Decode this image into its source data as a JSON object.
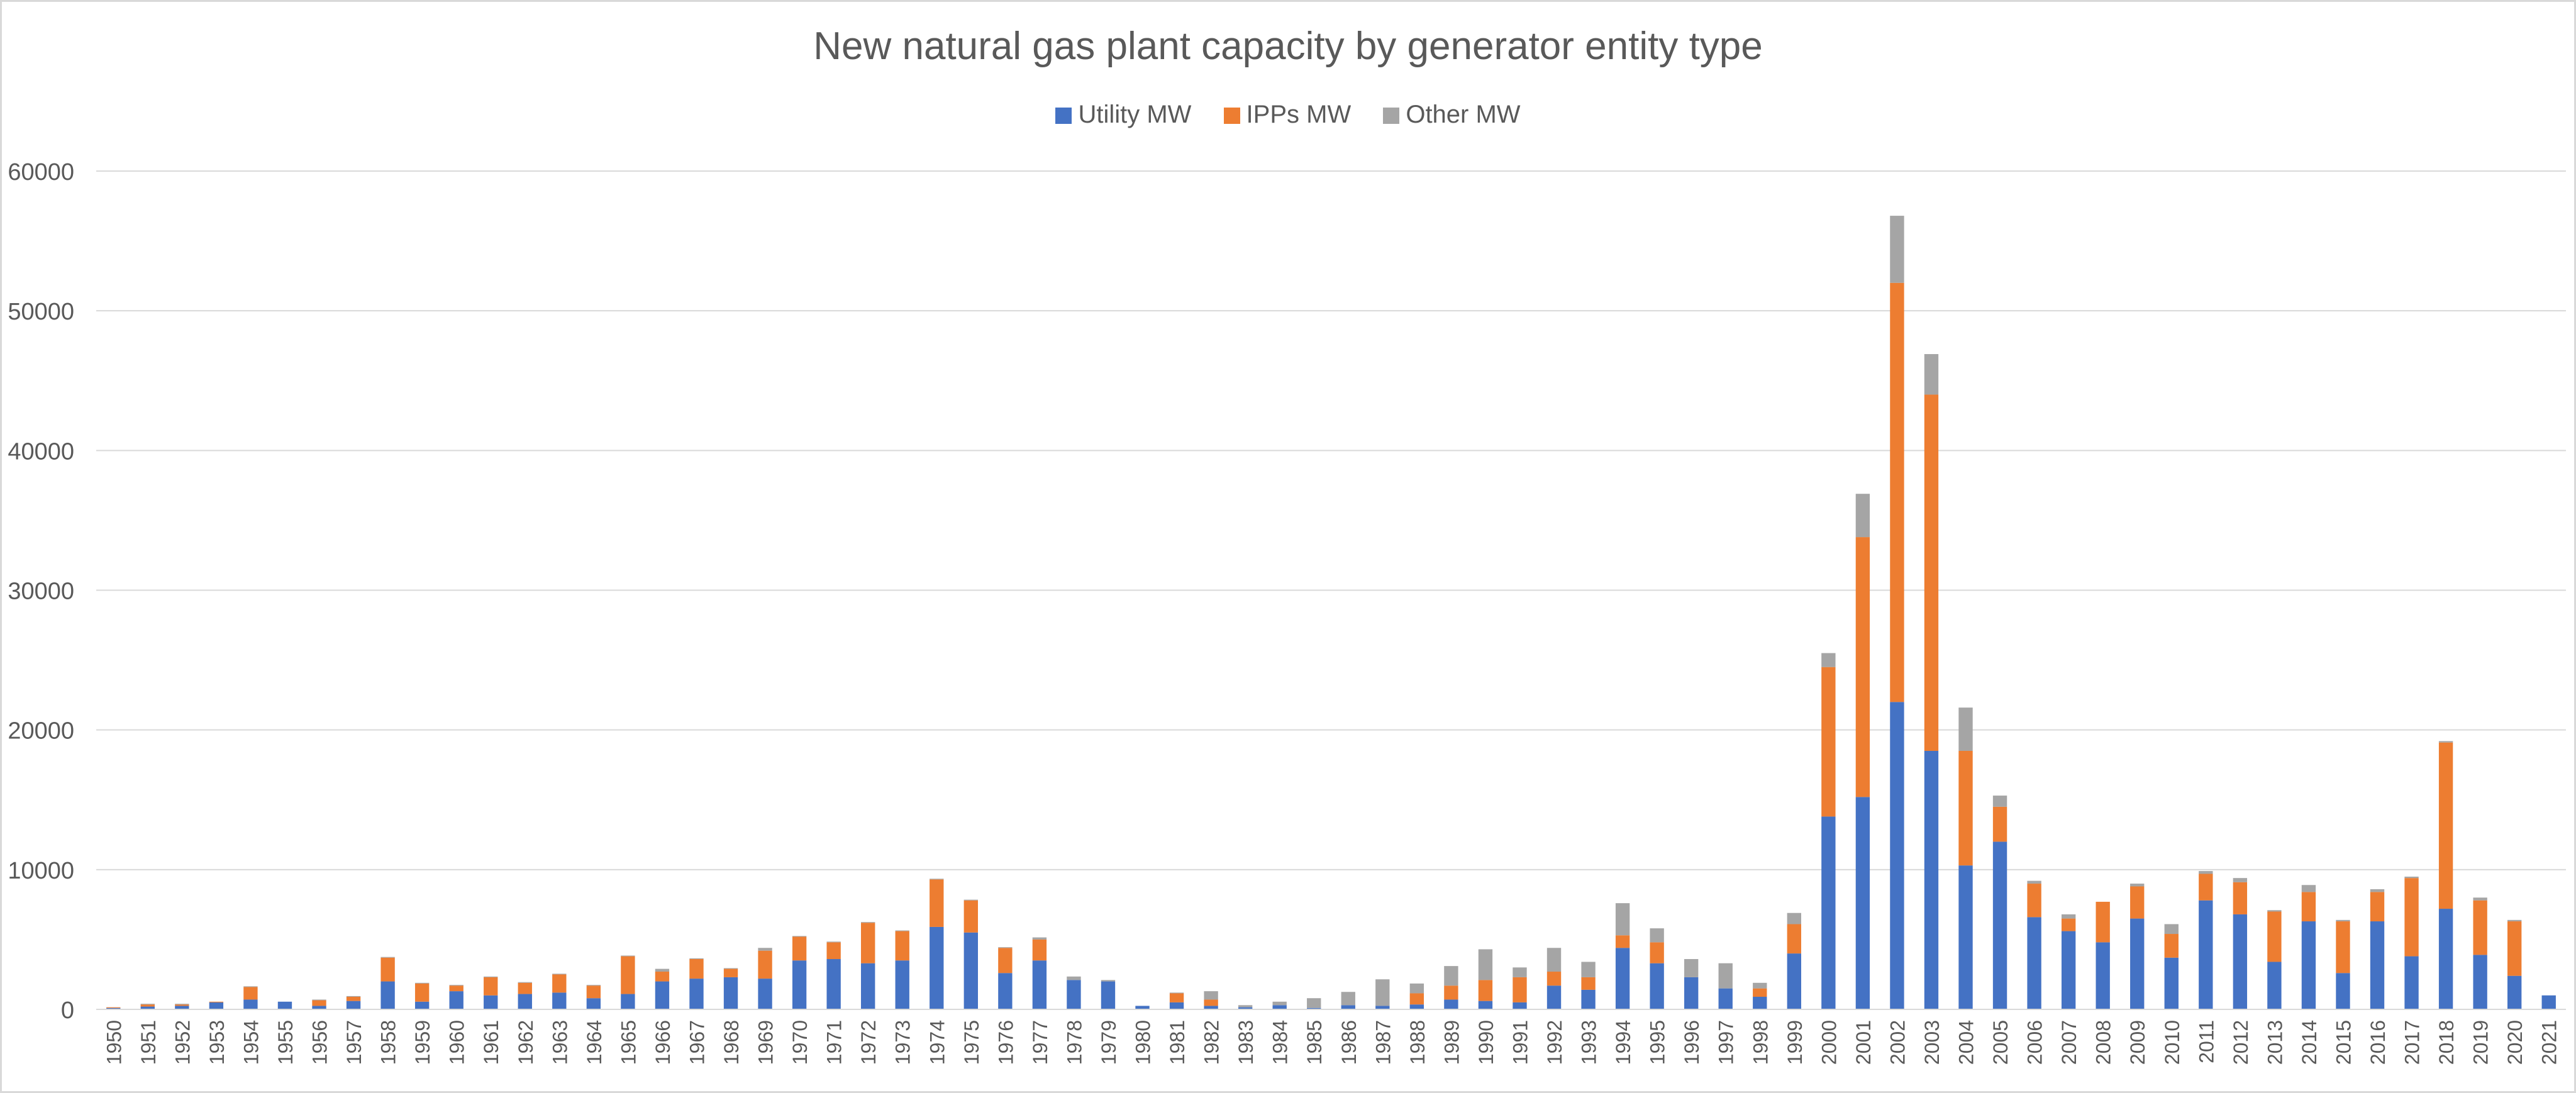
{
  "colors": {
    "utility": "#4472C4",
    "ipps": "#ED7D31",
    "other": "#A5A5A5",
    "grid": "#D9D9D9",
    "text": "#595959"
  },
  "chart_data": {
    "type": "bar",
    "stacked": true,
    "title": "New natural gas plant capacity by generator entity type",
    "legend_position": "top",
    "grid": true,
    "ylim": [
      0,
      60000
    ],
    "yticks": [
      0,
      10000,
      20000,
      30000,
      40000,
      50000,
      60000
    ],
    "legend": [
      {
        "key": "utility",
        "label": "Utility MW"
      },
      {
        "key": "ipps",
        "label": "IPPs MW"
      },
      {
        "key": "other",
        "label": "Other MW"
      }
    ],
    "categories": [
      "1950",
      "1951",
      "1952",
      "1953",
      "1954",
      "1955",
      "1956",
      "1957",
      "1958",
      "1959",
      "1960",
      "1961",
      "1962",
      "1963",
      "1964",
      "1965",
      "1966",
      "1967",
      "1968",
      "1969",
      "1970",
      "1971",
      "1972",
      "1973",
      "1974",
      "1975",
      "1976",
      "1977",
      "1978",
      "1979",
      "1980",
      "1981",
      "1982",
      "1983",
      "1984",
      "1985",
      "1986",
      "1987",
      "1988",
      "1989",
      "1990",
      "1991",
      "1992",
      "1993",
      "1994",
      "1995",
      "1996",
      "1997",
      "1998",
      "1999",
      "2000",
      "2001",
      "2002",
      "2003",
      "2004",
      "2005",
      "2006",
      "2007",
      "2008",
      "2009",
      "2010",
      "2011",
      "2012",
      "2013",
      "2014",
      "2015",
      "2016",
      "2017",
      "2018",
      "2019",
      "2020",
      "2021"
    ],
    "series": [
      {
        "name": "Utility MW",
        "values": [
          100,
          200,
          250,
          500,
          700,
          550,
          250,
          600,
          2000,
          550,
          1300,
          1000,
          1100,
          1200,
          800,
          1100,
          2000,
          2200,
          2300,
          2200,
          3500,
          3600,
          3300,
          3500,
          5900,
          5500,
          2600,
          3500,
          2100,
          2000,
          250,
          500,
          250,
          150,
          300,
          100,
          300,
          250,
          350,
          700,
          600,
          500,
          1700,
          1400,
          4400,
          3300,
          2300,
          1500,
          900,
          4000,
          13800,
          15200,
          22000,
          18500,
          10300,
          12000,
          6600,
          5600,
          4800,
          6500,
          3700,
          7800,
          6800,
          3400,
          6300,
          2600,
          6300,
          3800,
          7200,
          3900,
          2400,
          1000
        ]
      },
      {
        "name": "IPPs MW",
        "values": [
          50,
          150,
          100,
          50,
          900,
          0,
          400,
          300,
          1700,
          1300,
          400,
          1300,
          800,
          1300,
          900,
          2700,
          700,
          1400,
          600,
          2000,
          1700,
          1200,
          2900,
          2100,
          3400,
          2300,
          1800,
          1500,
          0,
          0,
          0,
          650,
          450,
          0,
          0,
          0,
          0,
          0,
          800,
          1000,
          1500,
          1800,
          1000,
          900,
          900,
          1500,
          0,
          0,
          600,
          2100,
          10700,
          18600,
          30000,
          25500,
          8200,
          2500,
          2400,
          900,
          2900,
          2300,
          1700,
          1900,
          2300,
          3600,
          2100,
          3700,
          2100,
          5600,
          11900,
          3900,
          3900,
          0
        ]
      },
      {
        "name": "Other MW",
        "values": [
          0,
          50,
          50,
          0,
          50,
          0,
          50,
          50,
          50,
          50,
          50,
          50,
          50,
          50,
          50,
          50,
          200,
          50,
          50,
          200,
          50,
          50,
          50,
          50,
          50,
          50,
          50,
          150,
          250,
          100,
          0,
          50,
          600,
          150,
          250,
          700,
          950,
          1900,
          700,
          1400,
          2200,
          700,
          1700,
          1100,
          2300,
          1000,
          1300,
          1800,
          400,
          800,
          1000,
          3100,
          4800,
          2900,
          3100,
          800,
          200,
          300,
          0,
          200,
          700,
          200,
          300,
          100,
          500,
          100,
          200,
          100,
          100,
          200,
          100,
          0
        ]
      }
    ]
  }
}
